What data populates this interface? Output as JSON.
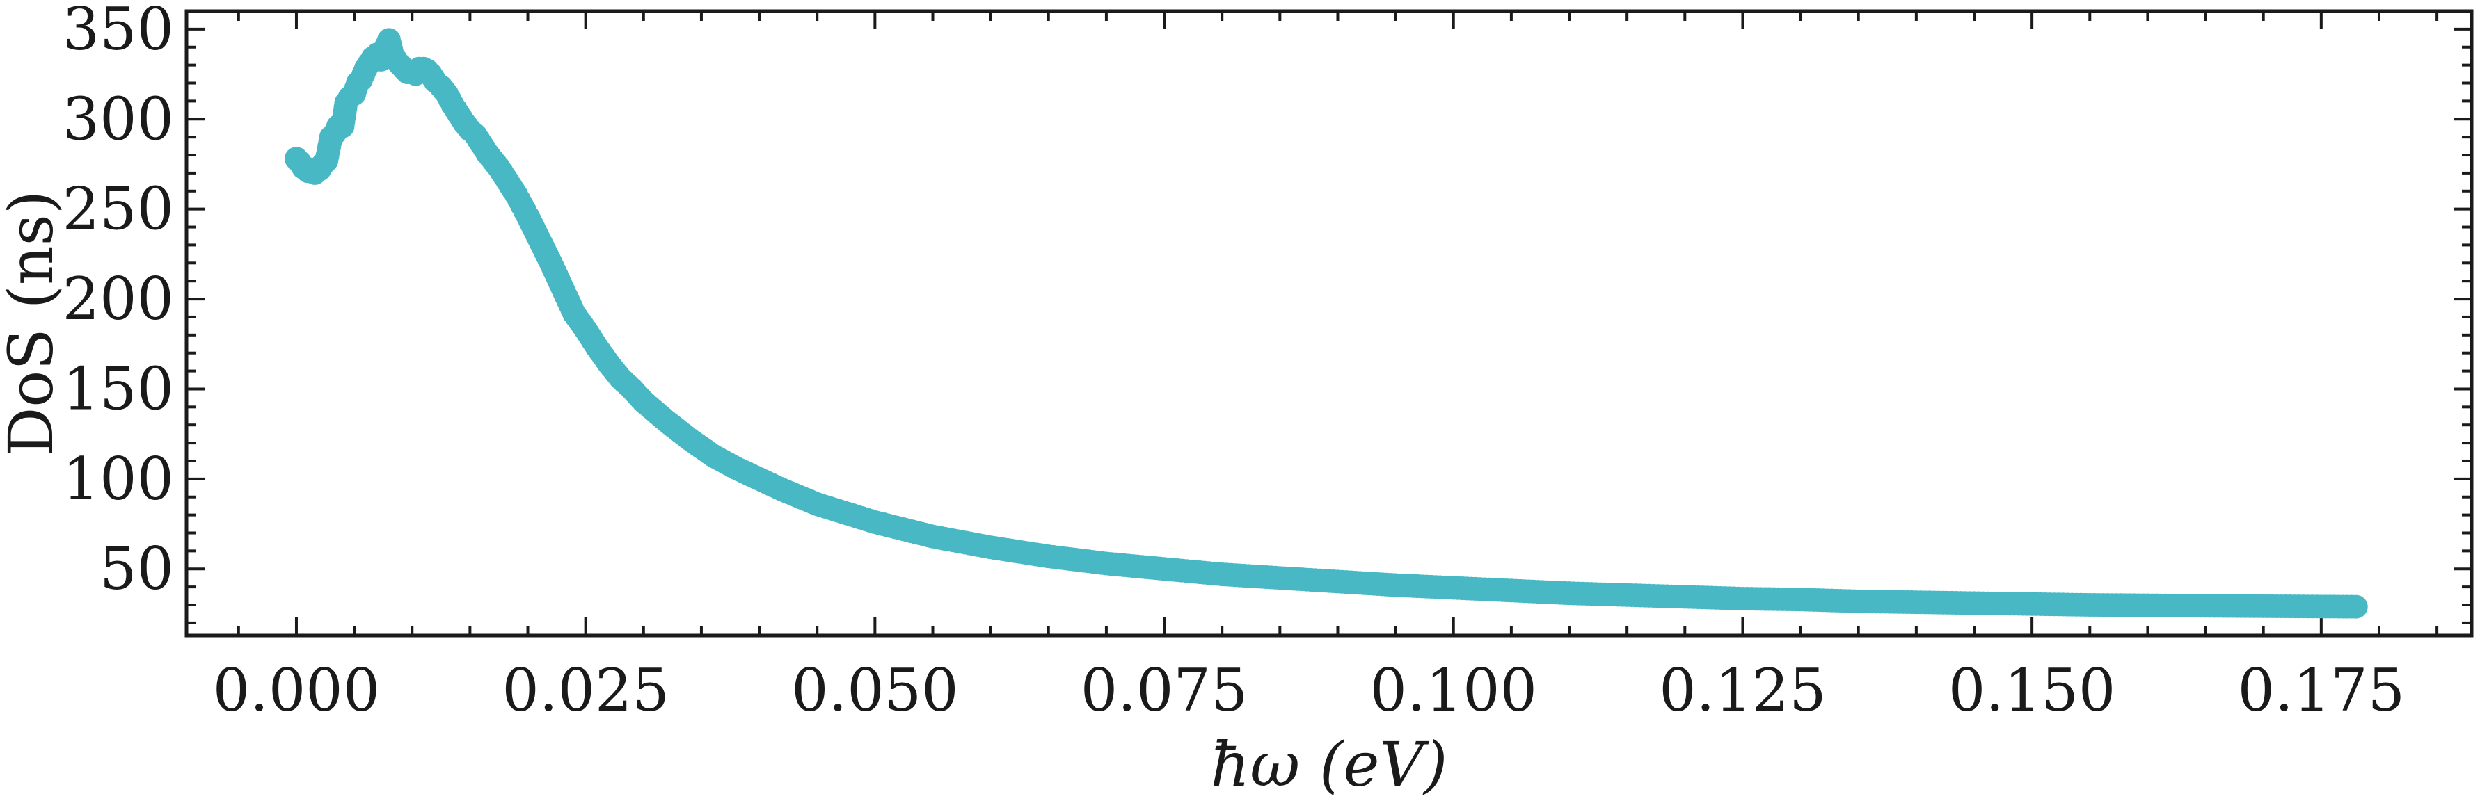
{
  "chart_data": {
    "type": "scatter",
    "xlabel": "ħω (eV)",
    "ylabel": "DoS (ns)",
    "xlim": [
      -0.0095,
      0.188
    ],
    "ylim": [
      13,
      360
    ],
    "xticks": [
      0.0,
      0.025,
      0.05,
      0.075,
      0.1,
      0.125,
      0.15,
      0.175
    ],
    "xtick_labels": [
      "0.000",
      "0.025",
      "0.050",
      "0.075",
      "0.100",
      "0.125",
      "0.150",
      "0.175"
    ],
    "yticks": [
      50,
      100,
      150,
      200,
      250,
      300,
      350
    ],
    "ytick_labels": [
      "50",
      "100",
      "150",
      "200",
      "250",
      "300",
      "350"
    ],
    "x_minor_step": 0.005,
    "y_minor_step": 10,
    "ticks_direction": "in",
    "ticks_on_all_sides": true,
    "grid": false,
    "legend": "none",
    "series": [
      {
        "color": "#47b8c4",
        "marker": "circle",
        "points": [
          [
            0.0,
            278
          ],
          [
            0.0003,
            276
          ],
          [
            0.0006,
            273
          ],
          [
            0.001,
            271
          ],
          [
            0.0013,
            272
          ],
          [
            0.0016,
            270
          ],
          [
            0.002,
            272
          ],
          [
            0.0023,
            275
          ],
          [
            0.0026,
            277
          ],
          [
            0.003,
            290
          ],
          [
            0.0033,
            292
          ],
          [
            0.0036,
            296
          ],
          [
            0.004,
            296
          ],
          [
            0.0043,
            309
          ],
          [
            0.0046,
            312
          ],
          [
            0.005,
            314
          ],
          [
            0.0053,
            320
          ],
          [
            0.0056,
            322
          ],
          [
            0.006,
            328
          ],
          [
            0.0063,
            331
          ],
          [
            0.0066,
            334
          ],
          [
            0.007,
            336
          ],
          [
            0.0073,
            333
          ],
          [
            0.0076,
            338
          ],
          [
            0.008,
            344
          ],
          [
            0.0083,
            336
          ],
          [
            0.0086,
            333
          ],
          [
            0.009,
            330
          ],
          [
            0.0093,
            328
          ],
          [
            0.0096,
            326
          ],
          [
            0.01,
            326
          ],
          [
            0.0103,
            325
          ],
          [
            0.0106,
            328
          ],
          [
            0.011,
            328
          ],
          [
            0.0113,
            327
          ],
          [
            0.0116,
            325
          ],
          [
            0.012,
            321
          ],
          [
            0.0125,
            318
          ],
          [
            0.013,
            314
          ],
          [
            0.0135,
            308
          ],
          [
            0.014,
            303
          ],
          [
            0.0145,
            298
          ],
          [
            0.015,
            294
          ],
          [
            0.0155,
            291
          ],
          [
            0.016,
            286
          ],
          [
            0.0165,
            281
          ],
          [
            0.017,
            277
          ],
          [
            0.0175,
            273
          ],
          [
            0.018,
            268
          ],
          [
            0.0185,
            263
          ],
          [
            0.019,
            258
          ],
          [
            0.0195,
            252
          ],
          [
            0.02,
            246
          ],
          [
            0.021,
            233
          ],
          [
            0.022,
            220
          ],
          [
            0.023,
            206
          ],
          [
            0.024,
            192
          ],
          [
            0.025,
            183
          ],
          [
            0.026,
            173
          ],
          [
            0.027,
            164
          ],
          [
            0.028,
            156
          ],
          [
            0.029,
            150
          ],
          [
            0.03,
            143
          ],
          [
            0.032,
            132
          ],
          [
            0.034,
            122
          ],
          [
            0.036,
            113
          ],
          [
            0.038,
            106
          ],
          [
            0.04,
            100
          ],
          [
            0.042,
            94
          ],
          [
            0.045,
            86
          ],
          [
            0.048,
            80
          ],
          [
            0.05,
            76
          ],
          [
            0.055,
            68
          ],
          [
            0.06,
            62
          ],
          [
            0.065,
            57
          ],
          [
            0.07,
            53
          ],
          [
            0.075,
            50
          ],
          [
            0.08,
            47
          ],
          [
            0.085,
            45
          ],
          [
            0.09,
            43
          ],
          [
            0.095,
            41
          ],
          [
            0.1,
            39.5
          ],
          [
            0.105,
            38
          ],
          [
            0.11,
            36.5
          ],
          [
            0.115,
            35.5
          ],
          [
            0.12,
            34.5
          ],
          [
            0.125,
            33.5
          ],
          [
            0.13,
            33
          ],
          [
            0.135,
            32
          ],
          [
            0.14,
            31.5
          ],
          [
            0.145,
            31
          ],
          [
            0.15,
            30.5
          ],
          [
            0.155,
            30
          ],
          [
            0.16,
            29.8
          ],
          [
            0.165,
            29.5
          ],
          [
            0.17,
            29.3
          ],
          [
            0.175,
            29.1
          ],
          [
            0.178,
            29
          ]
        ]
      }
    ]
  }
}
